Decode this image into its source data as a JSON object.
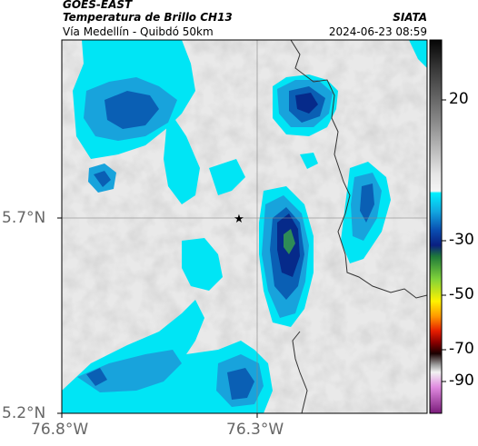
{
  "header": {
    "title_line1": "GOES-EAST",
    "title_line2": "Temperatura de Brillo CH13",
    "subtitle": "Vía Medellín - Quibdó 50km",
    "agency": "SIATA",
    "datetime": "2024-06-23 08:59"
  },
  "map": {
    "lat_labels": [
      "5.7°N",
      "5.2°N"
    ],
    "lon_labels": [
      "76.8°W",
      "76.3°W"
    ],
    "marker": "star-marker",
    "colors": {
      "cloud_light": "#00e5f5",
      "cloud_mid": "#18a3dc",
      "cloud_dark": "#0a5fb4",
      "cloud_core": "#062a8a",
      "cloud_peak": "#2e8b57",
      "clear_sky": "#e8e8e8",
      "border": "#333333"
    }
  },
  "colorbar": {
    "labels": [
      "20",
      "-30",
      "-50",
      "-70",
      "-90"
    ]
  }
}
